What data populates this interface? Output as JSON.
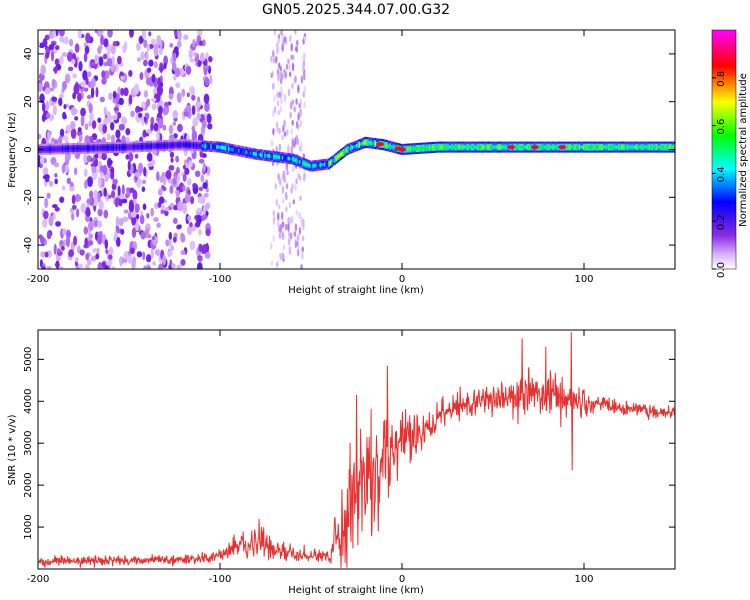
{
  "chart_data": [
    {
      "type": "heatmap",
      "title": "GN05.2025.344.07.00.G32",
      "xlabel": "Height of straight line (km)",
      "ylabel": "Frequency (Hz)",
      "xlim": [
        -200,
        150
      ],
      "ylim": [
        -50,
        50
      ],
      "xticks": [
        -200,
        -100,
        0,
        100
      ],
      "yticks": [
        -40,
        -20,
        0,
        20,
        40
      ],
      "colorbar": {
        "label": "Normalized spectral amplitude",
        "range": [
          0,
          1
        ],
        "ticks": [
          "0.0",
          "0.2",
          "0.4",
          "0.6",
          "0.8"
        ],
        "tick_values": [
          0.0,
          0.2,
          0.4,
          0.6,
          0.8
        ],
        "colors": [
          "#ffffff",
          "#8a2be2",
          "#0000ff",
          "#00ffff",
          "#00ff00",
          "#ffff00",
          "#ff0000",
          "#ff00ff"
        ]
      },
      "noise_region_x": [
        -200,
        -105
      ],
      "noise_band_x": [
        -72,
        -53
      ],
      "signal_track": [
        {
          "x": -200,
          "y": 0
        },
        {
          "x": -150,
          "y": 1
        },
        {
          "x": -120,
          "y": 2
        },
        {
          "x": -100,
          "y": 1
        },
        {
          "x": -80,
          "y": -2
        },
        {
          "x": -60,
          "y": -4
        },
        {
          "x": -50,
          "y": -7
        },
        {
          "x": -40,
          "y": -6
        },
        {
          "x": -30,
          "y": 0
        },
        {
          "x": -20,
          "y": 3
        },
        {
          "x": -10,
          "y": 2
        },
        {
          "x": 0,
          "y": 0
        },
        {
          "x": 20,
          "y": 1
        },
        {
          "x": 50,
          "y": 1
        },
        {
          "x": 100,
          "y": 1
        },
        {
          "x": 150,
          "y": 1
        }
      ]
    },
    {
      "type": "line",
      "xlabel": "Height of straight line (km)",
      "ylabel": "SNR (10 * v/v)",
      "xlim": [
        -200,
        150
      ],
      "ylim": [
        0,
        5700
      ],
      "xticks": [
        -200,
        -100,
        0,
        100
      ],
      "yticks": [
        1000,
        2000,
        3000,
        4000,
        5000
      ],
      "color": "#e8312f",
      "envelope": {
        "x": [
          -200,
          -150,
          -120,
          -100,
          -90,
          -80,
          -70,
          -60,
          -50,
          -40,
          -35,
          -30,
          -25,
          -20,
          -15,
          -10,
          -5,
          0,
          10,
          20,
          30,
          40,
          50,
          60,
          70,
          80,
          90,
          100,
          110,
          120,
          130,
          140,
          150
        ],
        "mean": [
          180,
          200,
          230,
          300,
          550,
          700,
          450,
          330,
          320,
          300,
          900,
          1300,
          1900,
          2300,
          2100,
          2500,
          2800,
          3000,
          3200,
          3600,
          3850,
          4000,
          4100,
          4100,
          4150,
          4200,
          4100,
          3950,
          3900,
          3850,
          3800,
          3750,
          3700
        ],
        "spread": [
          100,
          100,
          110,
          130,
          250,
          350,
          220,
          130,
          130,
          130,
          700,
          1000,
          1200,
          1300,
          1100,
          900,
          800,
          700,
          500,
          350,
          300,
          300,
          300,
          400,
          500,
          500,
          450,
          250,
          200,
          150,
          150,
          150,
          150
        ]
      },
      "spikes": [
        {
          "x": 66,
          "y": 5500
        },
        {
          "x": 79,
          "y": 5300
        },
        {
          "x": 93,
          "y": 5650
        },
        {
          "x": 93.5,
          "y": 2350
        },
        {
          "x": -8,
          "y": 4850
        },
        {
          "x": -25,
          "y": 4150
        }
      ]
    }
  ]
}
